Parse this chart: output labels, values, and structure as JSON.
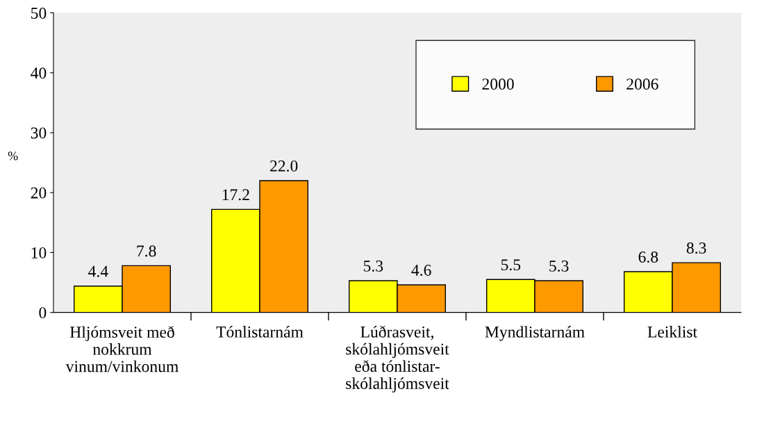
{
  "chart_data": {
    "type": "bar",
    "ylabel": "%",
    "categories": [
      "Hljómsveit með\nnokkrum\nvinum/vinkonum",
      "Tónlistarnám",
      "Lúðrasveit,\nskólahljómsveit\neða tónlistar-\nskólahljómsveit",
      "Myndlistarnám",
      "Leiklist"
    ],
    "series": [
      {
        "name": "2000",
        "color": "#ffff00",
        "values": [
          4.4,
          17.2,
          5.3,
          5.5,
          6.8
        ],
        "value_labels": [
          "4.4",
          "17.2",
          "5.3",
          "5.5",
          "6.8"
        ]
      },
      {
        "name": "2006",
        "color": "#ff9900",
        "values": [
          7.8,
          22.0,
          4.6,
          5.3,
          8.3
        ],
        "value_labels": [
          "7.8",
          "22.0",
          "4.6",
          "5.3",
          "8.3"
        ]
      }
    ],
    "ylim": [
      0,
      50
    ],
    "yticks": [
      0,
      10,
      20,
      30,
      40,
      50
    ],
    "grid": false,
    "legend": "top right"
  }
}
